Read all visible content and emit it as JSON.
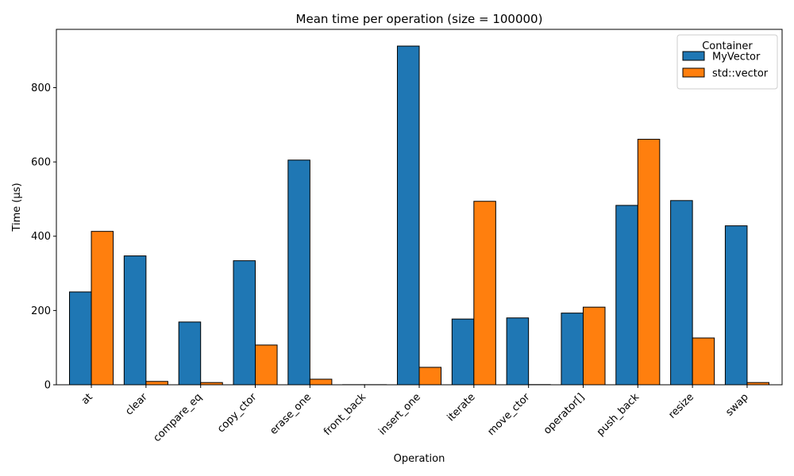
{
  "chart_data": {
    "type": "bar",
    "title": "Mean time per operation (size = 100000)",
    "xlabel": "Operation",
    "ylabel": "Time (µs)",
    "categories": [
      "at",
      "clear",
      "compare_eq",
      "copy_ctor",
      "erase_one",
      "front_back",
      "insert_one",
      "iterate",
      "move_ctor",
      "operator[]",
      "push_back",
      "resize",
      "swap"
    ],
    "series": [
      {
        "name": "MyVector",
        "color": "#1f77b4",
        "values": [
          250,
          347,
          169,
          334,
          605,
          0.3,
          912,
          177,
          180,
          193,
          483,
          496,
          428
        ]
      },
      {
        "name": "std::vector",
        "color": "#ff7f0e",
        "values": [
          413,
          9,
          6,
          107,
          15,
          0.3,
          47,
          494,
          0.5,
          209,
          661,
          126,
          6
        ]
      }
    ],
    "ylim": [
      0,
      957
    ],
    "yticks": [
      0,
      200,
      400,
      600,
      800
    ],
    "legend": {
      "title": "Container",
      "position": "top-right"
    },
    "grid": false
  }
}
